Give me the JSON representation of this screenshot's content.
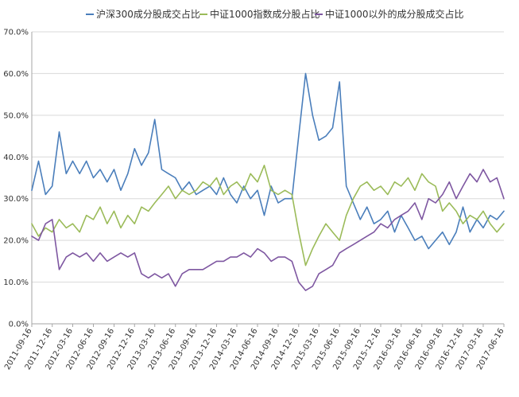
{
  "chart_data": {
    "type": "line",
    "title": "",
    "xlabel": "",
    "ylabel": "",
    "ylim": [
      0,
      70
    ],
    "y_tick_labels": [
      "0.0%",
      "10.0%",
      "20.0%",
      "30.0%",
      "40.0%",
      "50.0%",
      "60.0%",
      "70.0%"
    ],
    "y_ticks": [
      0,
      10,
      20,
      30,
      40,
      50,
      60,
      70
    ],
    "x_tick_labels": [
      "2011-09-16",
      "2011-12-16",
      "2012-03-16",
      "2012-06-16",
      "2012-09-16",
      "2012-12-16",
      "2013-03-16",
      "2013-06-16",
      "2013-09-16",
      "2013-12-16",
      "2014-03-16",
      "2014-06-16",
      "2014-09-16",
      "2014-12-16",
      "2015-03-16",
      "2015-06-16",
      "2015-09-16",
      "2015-12-16",
      "2016-03-16",
      "2016-06-16",
      "2016-09-16",
      "2016-12-16",
      "2017-03-16",
      "2017-06-16"
    ],
    "grid": true,
    "legend_position": "top",
    "series": [
      {
        "name": "沪深300成分股成交占比",
        "color": "#4a7ebb",
        "x": [
          "2011-09-16",
          "2011-10-16",
          "2011-11-16",
          "2011-12-16",
          "2012-01-16",
          "2012-02-16",
          "2012-03-16",
          "2012-04-16",
          "2012-05-16",
          "2012-06-16",
          "2012-07-16",
          "2012-08-16",
          "2012-09-16",
          "2012-10-16",
          "2012-11-16",
          "2012-12-16",
          "2013-01-16",
          "2013-02-16",
          "2013-03-16",
          "2013-04-16",
          "2013-05-16",
          "2013-06-16",
          "2013-07-16",
          "2013-08-16",
          "2013-09-16",
          "2013-10-16",
          "2013-11-16",
          "2013-12-16",
          "2014-01-16",
          "2014-02-16",
          "2014-03-16",
          "2014-04-16",
          "2014-05-16",
          "2014-06-16",
          "2014-07-16",
          "2014-08-16",
          "2014-09-16",
          "2014-10-16",
          "2014-11-16",
          "2014-12-16",
          "2015-01-16",
          "2015-02-16",
          "2015-03-16",
          "2015-04-16",
          "2015-05-16",
          "2015-06-16",
          "2015-07-16",
          "2015-08-16",
          "2015-09-16",
          "2015-10-16",
          "2015-11-16",
          "2015-12-16",
          "2016-01-16",
          "2016-02-16",
          "2016-03-16",
          "2016-04-16",
          "2016-05-16",
          "2016-06-16",
          "2016-07-16",
          "2016-08-16",
          "2016-09-16",
          "2016-10-16",
          "2016-11-16",
          "2016-12-16",
          "2017-01-16",
          "2017-02-16",
          "2017-03-16",
          "2017-04-16",
          "2017-05-16",
          "2017-06-16"
        ],
        "values": [
          32,
          39,
          31,
          33,
          46,
          36,
          39,
          36,
          39,
          35,
          37,
          34,
          37,
          32,
          36,
          42,
          38,
          41,
          49,
          37,
          36,
          35,
          32,
          34,
          31,
          32,
          33,
          31,
          35,
          31,
          29,
          33,
          30,
          32,
          26,
          33,
          29,
          30,
          30,
          45,
          60,
          50,
          44,
          45,
          47,
          58,
          33,
          29,
          25,
          28,
          24,
          25,
          27,
          22,
          26,
          23,
          20,
          21,
          18,
          20,
          22,
          19,
          22,
          28,
          22,
          25,
          23,
          26,
          25,
          27
        ]
      },
      {
        "name": "中证1000指数成分股占比",
        "color": "#9bbb59",
        "x": [
          "2011-09-16",
          "2011-10-16",
          "2011-11-16",
          "2011-12-16",
          "2012-01-16",
          "2012-02-16",
          "2012-03-16",
          "2012-04-16",
          "2012-05-16",
          "2012-06-16",
          "2012-07-16",
          "2012-08-16",
          "2012-09-16",
          "2012-10-16",
          "2012-11-16",
          "2012-12-16",
          "2013-01-16",
          "2013-02-16",
          "2013-03-16",
          "2013-04-16",
          "2013-05-16",
          "2013-06-16",
          "2013-07-16",
          "2013-08-16",
          "2013-09-16",
          "2013-10-16",
          "2013-11-16",
          "2013-12-16",
          "2014-01-16",
          "2014-02-16",
          "2014-03-16",
          "2014-04-16",
          "2014-05-16",
          "2014-06-16",
          "2014-07-16",
          "2014-08-16",
          "2014-09-16",
          "2014-10-16",
          "2014-11-16",
          "2014-12-16",
          "2015-01-16",
          "2015-02-16",
          "2015-03-16",
          "2015-04-16",
          "2015-05-16",
          "2015-06-16",
          "2015-07-16",
          "2015-08-16",
          "2015-09-16",
          "2015-10-16",
          "2015-11-16",
          "2015-12-16",
          "2016-01-16",
          "2016-02-16",
          "2016-03-16",
          "2016-04-16",
          "2016-05-16",
          "2016-06-16",
          "2016-07-16",
          "2016-08-16",
          "2016-09-16",
          "2016-10-16",
          "2016-11-16",
          "2016-12-16",
          "2017-01-16",
          "2017-02-16",
          "2017-03-16",
          "2017-04-16",
          "2017-05-16",
          "2017-06-16"
        ],
        "values": [
          24,
          21,
          23,
          22,
          25,
          23,
          24,
          22,
          26,
          25,
          28,
          24,
          27,
          23,
          26,
          24,
          28,
          27,
          29,
          31,
          33,
          30,
          32,
          31,
          32,
          34,
          33,
          35,
          31,
          33,
          34,
          32,
          36,
          34,
          38,
          32,
          31,
          32,
          31,
          22,
          14,
          18,
          21,
          24,
          22,
          20,
          26,
          30,
          33,
          34,
          32,
          33,
          31,
          34,
          33,
          35,
          32,
          36,
          34,
          33,
          27,
          29,
          27,
          24,
          26,
          25,
          27,
          24,
          22,
          24
        ]
      },
      {
        "name": "中证1000以外的成分股成交占比",
        "color": "#7e57a1",
        "x": [
          "2011-09-16",
          "2011-10-16",
          "2011-11-16",
          "2011-12-16",
          "2012-01-16",
          "2012-02-16",
          "2012-03-16",
          "2012-04-16",
          "2012-05-16",
          "2012-06-16",
          "2012-07-16",
          "2012-08-16",
          "2012-09-16",
          "2012-10-16",
          "2012-11-16",
          "2012-12-16",
          "2013-01-16",
          "2013-02-16",
          "2013-03-16",
          "2013-04-16",
          "2013-05-16",
          "2013-06-16",
          "2013-07-16",
          "2013-08-16",
          "2013-09-16",
          "2013-10-16",
          "2013-11-16",
          "2013-12-16",
          "2014-01-16",
          "2014-02-16",
          "2014-03-16",
          "2014-04-16",
          "2014-05-16",
          "2014-06-16",
          "2014-07-16",
          "2014-08-16",
          "2014-09-16",
          "2014-10-16",
          "2014-11-16",
          "2014-12-16",
          "2015-01-16",
          "2015-02-16",
          "2015-03-16",
          "2015-04-16",
          "2015-05-16",
          "2015-06-16",
          "2015-07-16",
          "2015-08-16",
          "2015-09-16",
          "2015-10-16",
          "2015-11-16",
          "2015-12-16",
          "2016-01-16",
          "2016-02-16",
          "2016-03-16",
          "2016-04-16",
          "2016-05-16",
          "2016-06-16",
          "2016-07-16",
          "2016-08-16",
          "2016-09-16",
          "2016-10-16",
          "2016-11-16",
          "2016-12-16",
          "2017-01-16",
          "2017-02-16",
          "2017-03-16",
          "2017-04-16",
          "2017-05-16",
          "2017-06-16"
        ],
        "values": [
          21,
          20,
          24,
          25,
          13,
          16,
          17,
          16,
          17,
          15,
          17,
          15,
          16,
          17,
          16,
          17,
          12,
          11,
          12,
          11,
          12,
          9,
          12,
          13,
          13,
          13,
          14,
          15,
          15,
          16,
          16,
          17,
          16,
          18,
          17,
          15,
          16,
          16,
          15,
          10,
          8,
          9,
          12,
          13,
          14,
          17,
          18,
          19,
          20,
          21,
          22,
          24,
          23,
          25,
          26,
          27,
          29,
          25,
          30,
          29,
          31,
          34,
          30,
          33,
          36,
          34,
          37,
          34,
          35,
          30
        ]
      }
    ]
  }
}
